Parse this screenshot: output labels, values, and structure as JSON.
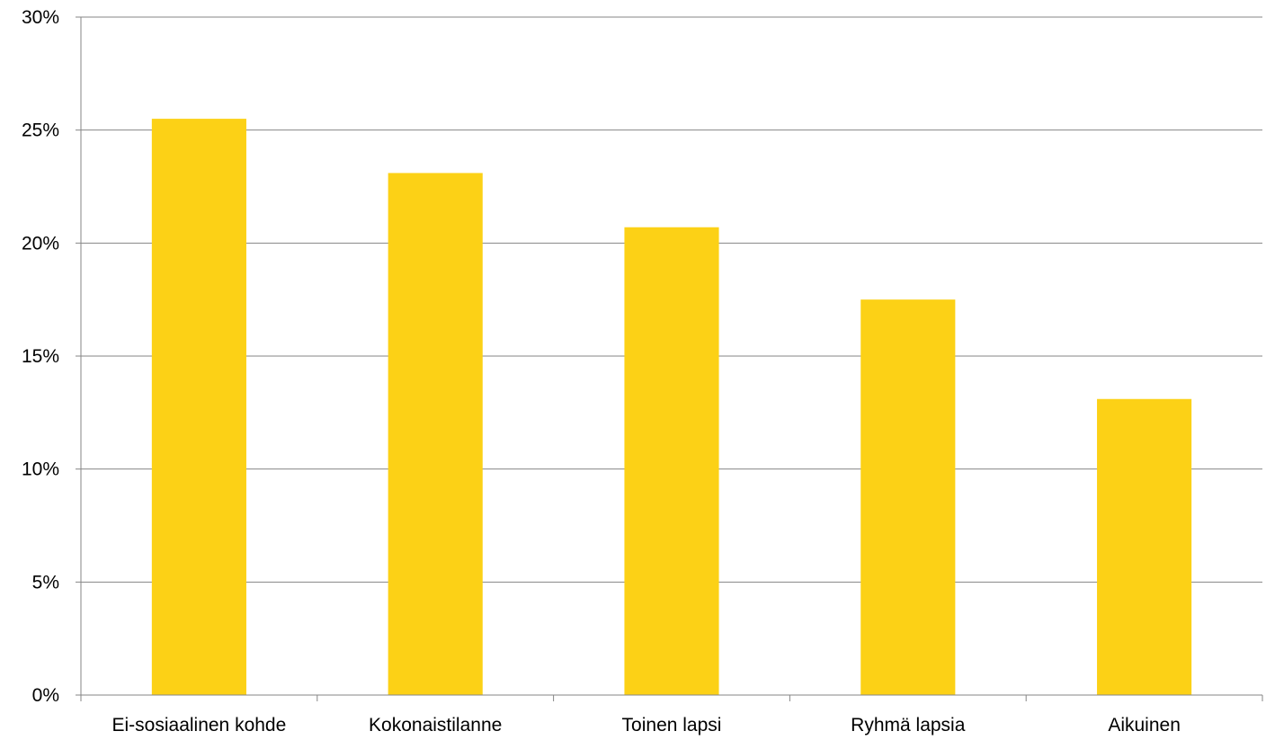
{
  "chart_data": {
    "type": "bar",
    "title": "",
    "xlabel": "",
    "ylabel": "",
    "categories": [
      "Ei-sosiaalinen kohde",
      "Kokonaistilanne",
      "Toinen lapsi",
      "Ryhmä lapsia",
      "Aikuinen"
    ],
    "values": [
      25.5,
      23.1,
      20.7,
      17.5,
      13.1
    ],
    "value_unit": "%",
    "ylim": [
      0,
      30
    ],
    "y_ticks": [
      0,
      5,
      10,
      15,
      20,
      25,
      30
    ],
    "y_tick_labels": [
      "0%",
      "5%",
      "10%",
      "15%",
      "20%",
      "25%",
      "30%"
    ],
    "grid": true,
    "legend": "none",
    "bar_color": "#FCD116",
    "grid_color": "#868686",
    "axis_color": "#868686"
  }
}
